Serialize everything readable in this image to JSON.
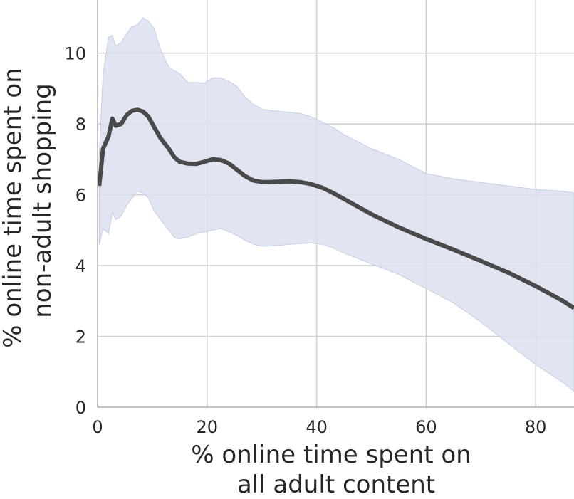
{
  "chart_data": {
    "type": "line",
    "title": "",
    "xlabel_lines": [
      "% online time spent on",
      "all adult content"
    ],
    "ylabel_lines": [
      "% online time spent on",
      "non-adult shopping"
    ],
    "xlim": [
      0,
      87
    ],
    "ylim": [
      0,
      11.5
    ],
    "xticks": [
      0,
      20,
      40,
      60,
      80
    ],
    "yticks": [
      0,
      2,
      4,
      6,
      8,
      10
    ],
    "grid": true,
    "colors": {
      "line": "#4a4a4a",
      "band": "#dae1ef",
      "band_edge": "#c3cfe6",
      "grid": "#cfcfcf",
      "axis": "#b0b0b0"
    },
    "series": [
      {
        "x": [
          0.3,
          1,
          2,
          2.7,
          3.3,
          4.3,
          5.3,
          6.3,
          7.3,
          8.3,
          9.3,
          10.3,
          11.5,
          13,
          14,
          15,
          16.5,
          18,
          19.5,
          21,
          22.5,
          24,
          25.5,
          27,
          28.5,
          30,
          31.5,
          33,
          35,
          37,
          39,
          41,
          43,
          45,
          50,
          55,
          60,
          65,
          70,
          75,
          80,
          85,
          87
        ],
        "y": [
          6.25,
          7.3,
          7.65,
          8.15,
          7.95,
          8.0,
          8.25,
          8.37,
          8.4,
          8.35,
          8.2,
          7.92,
          7.6,
          7.3,
          7.06,
          6.93,
          6.88,
          6.87,
          6.93,
          7.0,
          6.98,
          6.88,
          6.7,
          6.52,
          6.4,
          6.36,
          6.36,
          6.37,
          6.38,
          6.36,
          6.3,
          6.2,
          6.05,
          5.88,
          5.45,
          5.08,
          4.75,
          4.45,
          4.13,
          3.8,
          3.42,
          3.0,
          2.8
        ],
        "upper": [
          7.1,
          9.4,
          10.45,
          10.5,
          10.2,
          10.3,
          10.55,
          10.75,
          10.8,
          11.0,
          10.9,
          10.7,
          10.1,
          9.6,
          9.5,
          9.42,
          9.17,
          9.17,
          9.15,
          9.3,
          9.3,
          9.2,
          9.05,
          8.75,
          8.55,
          8.42,
          8.38,
          8.36,
          8.33,
          8.3,
          8.2,
          8.05,
          7.9,
          7.7,
          7.3,
          7.0,
          6.6,
          6.45,
          6.35,
          6.25,
          6.15,
          6.1,
          6.05
        ],
        "lower": [
          4.6,
          5.05,
          4.9,
          5.5,
          5.3,
          5.4,
          5.7,
          5.9,
          6.1,
          6.05,
          5.9,
          5.55,
          5.3,
          5.0,
          4.8,
          4.75,
          4.8,
          4.9,
          4.95,
          5.0,
          5.05,
          4.95,
          4.85,
          4.7,
          4.6,
          4.55,
          4.55,
          4.57,
          4.6,
          4.62,
          4.64,
          4.6,
          4.5,
          4.35,
          4.05,
          3.75,
          3.35,
          2.95,
          2.4,
          1.8,
          1.2,
          0.7,
          0.45
        ]
      }
    ]
  }
}
